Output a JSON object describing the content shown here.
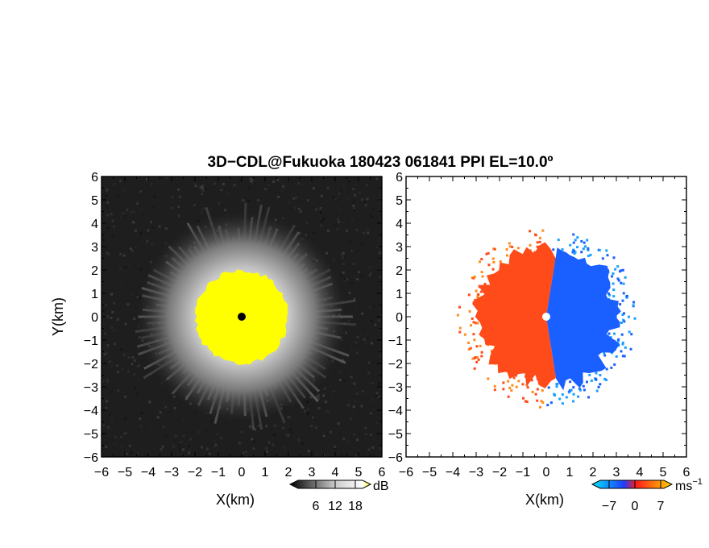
{
  "title": "3D−CDL@Fukuoka 180423 061841 PPI EL=10.0º",
  "chart_data": [
    {
      "type": "heatmap",
      "panel": "left",
      "field": "backscatter intensity",
      "xlabel": "X(km)",
      "ylabel": "Y(km)",
      "xlim": [
        -6,
        6
      ],
      "ylim": [
        -6,
        6
      ],
      "xticks": [
        "−6",
        "−5",
        "−4",
        "−3",
        "−2",
        "−1",
        "0",
        "1",
        "2",
        "3",
        "4",
        "5",
        "6"
      ],
      "yticks": [
        "−6",
        "−5",
        "−4",
        "−3",
        "−2",
        "−1",
        "0",
        "1",
        "2",
        "3",
        "4",
        "5",
        "6"
      ],
      "saturated_radius_km": 2.0,
      "halo_radius_km": 4.5,
      "background": "#1e1e1e",
      "saturation_color": "#ffff00",
      "center_marker_color": "#000000",
      "colorbar": {
        "unit": "dB",
        "ticks": [
          "6",
          "12",
          "18"
        ],
        "colors": [
          "#000000",
          "#ffffff",
          "#ffff00"
        ]
      }
    },
    {
      "type": "heatmap",
      "panel": "right",
      "field": "Doppler velocity",
      "xlabel": "X(km)",
      "ylabel": "",
      "xlim": [
        -6,
        6
      ],
      "ylim": [
        -6,
        6
      ],
      "xticks": [
        "−6",
        "−5",
        "−4",
        "−3",
        "−2",
        "−1",
        "0",
        "1",
        "2",
        "3",
        "4",
        "5",
        "6"
      ],
      "yticks": [
        "−6",
        "−5",
        "−4",
        "−3",
        "−2",
        "−1",
        "0",
        "1",
        "2",
        "3",
        "4",
        "5",
        "6"
      ],
      "echo_radius_km": 3.2,
      "background": "#ffffff",
      "positive_color": "#ff4a1a",
      "negative_color": "#1a5fff",
      "center_marker_color": "#ffffff",
      "colorbar": {
        "unit": "ms",
        "unit_exponent": "−1",
        "ticks": [
          "−7",
          "0",
          "7"
        ],
        "colors": [
          "#00e5ff",
          "#1f3cff",
          "#ff1a1a",
          "#ffd700"
        ]
      }
    }
  ]
}
